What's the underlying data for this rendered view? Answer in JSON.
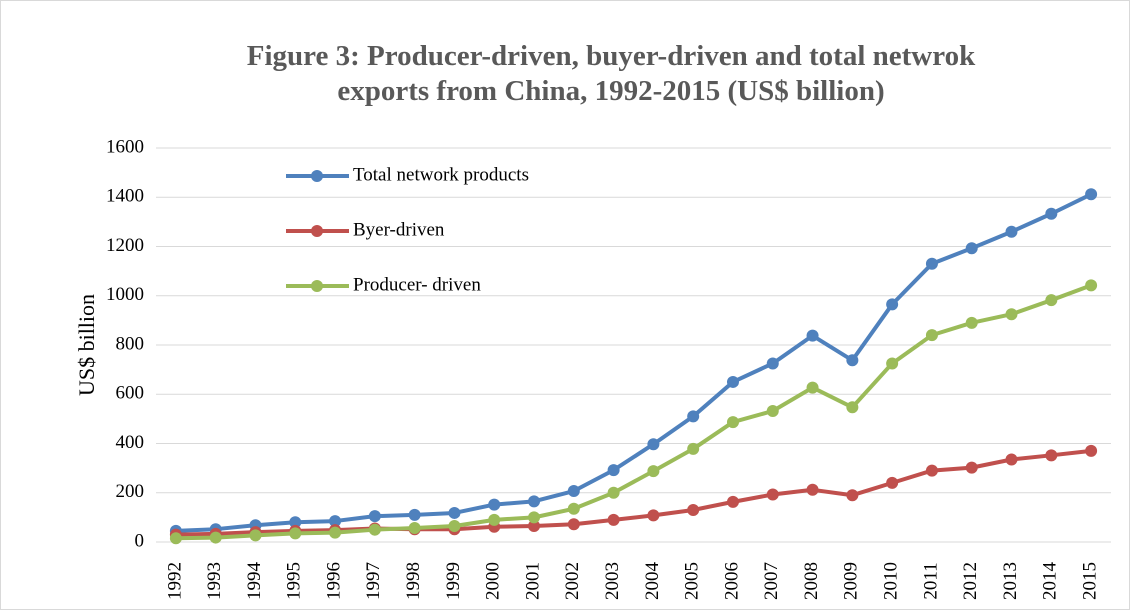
{
  "chart_data": {
    "type": "line",
    "title": "Figure 3: Producer-driven, buyer-driven and total netwrok exports from China, 1992-2015 (US$ billion)",
    "y_label": "US$ billion",
    "categories": [
      "1992",
      "1993",
      "1994",
      "1995",
      "1996",
      "1997",
      "1998",
      "1999",
      "2000",
      "2001",
      "2002",
      "2003",
      "2004",
      "2005",
      "2006",
      "2007",
      "2008",
      "2009",
      "2010",
      "2011",
      "2012",
      "2013",
      "2014",
      "2015"
    ],
    "series": [
      {
        "name": "Total network products",
        "color": "#4f81bd",
        "values": [
          45,
          52,
          68,
          80,
          85,
          105,
          110,
          118,
          152,
          165,
          207,
          292,
          397,
          510,
          650,
          725,
          838,
          738,
          965,
          1130,
          1193,
          1260,
          1333,
          1412
        ]
      },
      {
        "name": "Byer-driven",
        "color": "#c0504d",
        "values": [
          30,
          33,
          40,
          45,
          48,
          55,
          52,
          52,
          62,
          65,
          72,
          90,
          108,
          130,
          163,
          193,
          212,
          190,
          240,
          290,
          302,
          335,
          352,
          370
        ]
      },
      {
        "name": "Producer- driven",
        "color": "#9bbb59",
        "values": [
          15,
          18,
          27,
          35,
          38,
          50,
          57,
          65,
          90,
          100,
          135,
          200,
          288,
          378,
          487,
          532,
          627,
          547,
          725,
          840,
          890,
          925,
          982,
          1042
        ]
      }
    ],
    "ylim": [
      0,
      1600
    ],
    "yticks": [
      0,
      200,
      400,
      600,
      800,
      1000,
      1200,
      1400,
      1600
    ],
    "grid": true
  }
}
